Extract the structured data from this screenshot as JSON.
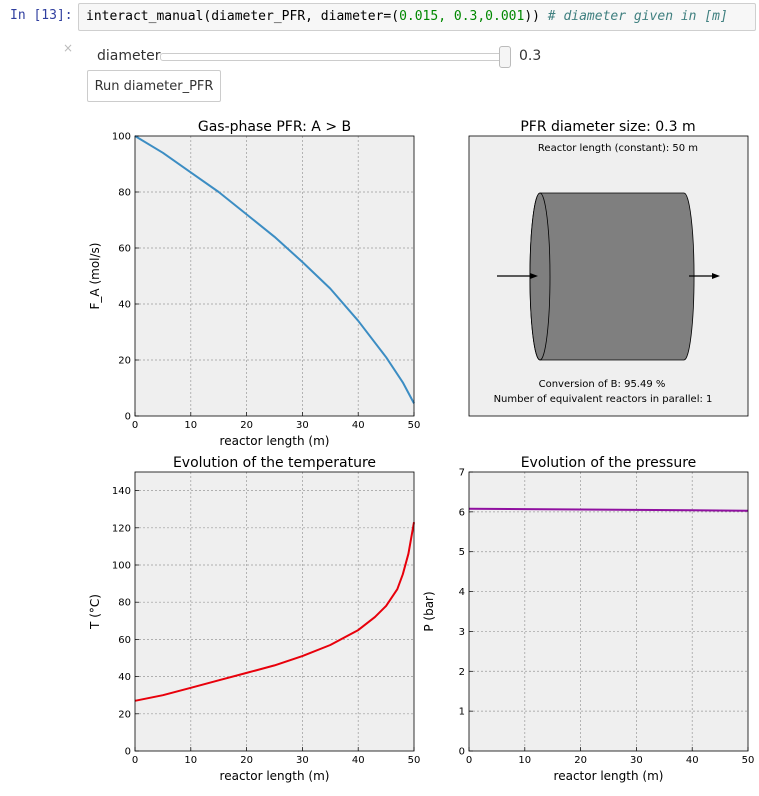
{
  "cell": {
    "prompt": "In [13]:",
    "code_call": "interact_manual(diameter_PFR, diameter=(",
    "code_args": "0.015, 0.3,0.001",
    "code_close": ")) ",
    "code_comment": "# diameter given in [m]"
  },
  "widget": {
    "close": "×",
    "slider_label": "diameter",
    "slider_value": "0.3",
    "slider_fraction": 1.0,
    "run_button": "Run diameter_PFR"
  },
  "chart_data": [
    {
      "type": "line",
      "title": "Gas-phase PFR: A > B",
      "xlabel": "reactor length (m)",
      "ylabel": "F_A (mol/s)",
      "xlim": [
        0,
        50
      ],
      "ylim": [
        0,
        100
      ],
      "xticks": [
        0,
        10,
        20,
        30,
        40,
        50
      ],
      "yticks": [
        0,
        20,
        40,
        60,
        80,
        100
      ],
      "grid": true,
      "color": "#3c8dc3",
      "series": [
        {
          "x": [
            0,
            5,
            10,
            15,
            20,
            25,
            30,
            35,
            40,
            45,
            48,
            50
          ],
          "y": [
            100,
            94,
            87,
            80,
            72,
            64,
            55,
            45.5,
            34,
            21,
            12,
            4.5
          ]
        }
      ]
    },
    {
      "type": "diagram",
      "title": "PFR diameter size: 0.3 m",
      "reactor_length_text": "Reactor length (constant): 50 m",
      "conversion_text": "Conversion of B: 95.49 %",
      "parallel_text": "Number of equivalent reactors in parallel: 1"
    },
    {
      "type": "line",
      "title": "Evolution of the temperature",
      "xlabel": "reactor length (m)",
      "ylabel": "T (°C)",
      "xlim": [
        0,
        50
      ],
      "ylim": [
        0,
        150
      ],
      "xticks": [
        0,
        10,
        20,
        30,
        40,
        50
      ],
      "yticks": [
        0,
        20,
        40,
        60,
        80,
        100,
        120,
        140
      ],
      "grid": true,
      "color": "#e8000b",
      "series": [
        {
          "x": [
            0,
            5,
            10,
            15,
            20,
            25,
            30,
            35,
            40,
            43,
            45,
            47,
            48,
            49,
            50
          ],
          "y": [
            27,
            30,
            34,
            38,
            42,
            46,
            51,
            57,
            65,
            72,
            78,
            87,
            95,
            106,
            123
          ]
        }
      ]
    },
    {
      "type": "line",
      "title": "Evolution of the pressure",
      "xlabel": "reactor length (m)",
      "ylabel": "P (bar)",
      "xlim": [
        0,
        50
      ],
      "ylim": [
        0,
        7
      ],
      "xticks": [
        0,
        10,
        20,
        30,
        40,
        50
      ],
      "yticks": [
        0,
        1,
        2,
        3,
        4,
        5,
        6,
        7
      ],
      "grid": true,
      "color": "#9010a0",
      "series": [
        {
          "x": [
            0,
            10,
            20,
            30,
            40,
            50
          ],
          "y": [
            6.08,
            6.07,
            6.06,
            6.05,
            6.04,
            6.03
          ]
        }
      ]
    }
  ]
}
